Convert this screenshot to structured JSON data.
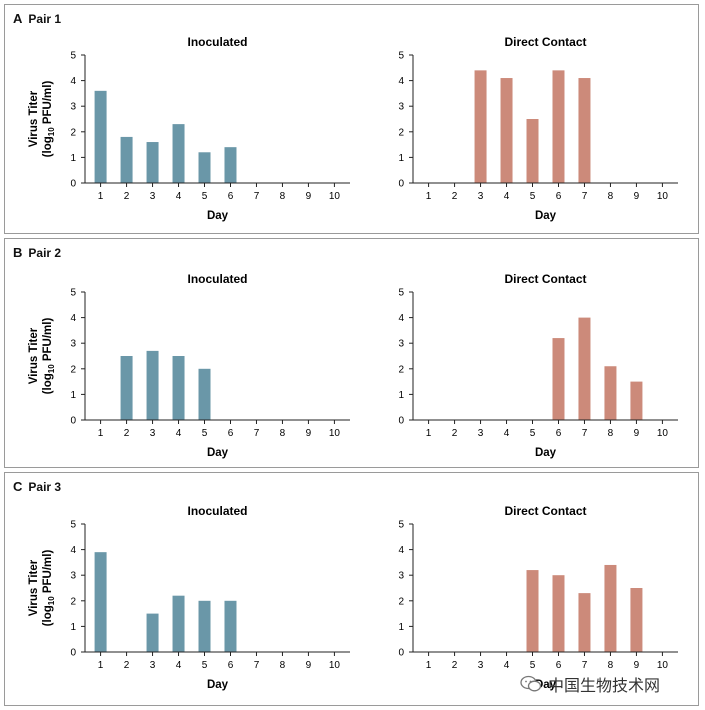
{
  "colors": {
    "inoculated": "#6a97a8",
    "direct_contact": "#cc8a7a",
    "axis": "#222222"
  },
  "watermark": {
    "text": "中国生物技术网",
    "icon": "wechat-chat-icon"
  },
  "chart_data": [
    {
      "type": "bar",
      "panel": "A",
      "panel_label": "Pair 1",
      "title": "Inoculated",
      "xlabel": "Day",
      "ylabel_main": "Virus Titer",
      "ylabel_unit_pre": "(log",
      "ylabel_unit_sub": "10",
      "ylabel_unit_post": " PFU/ml)",
      "categories": [
        "1",
        "2",
        "3",
        "4",
        "5",
        "6",
        "7",
        "8",
        "9",
        "10"
      ],
      "series": [
        {
          "values": [
            3.6,
            1.8,
            1.6,
            2.3,
            1.2,
            1.4,
            0,
            0,
            0,
            0
          ]
        }
      ],
      "ylim": [
        0,
        5
      ],
      "yticks": [
        "0",
        "1",
        "2",
        "3",
        "4",
        "5"
      ],
      "color_key": "inoculated",
      "grid": false
    },
    {
      "type": "bar",
      "panel": "A",
      "title": "Direct Contact",
      "xlabel": "Day",
      "categories": [
        "1",
        "2",
        "3",
        "4",
        "5",
        "6",
        "7",
        "8",
        "9",
        "10"
      ],
      "series": [
        {
          "values": [
            0,
            0,
            4.4,
            4.1,
            2.5,
            4.4,
            4.1,
            0,
            0,
            0
          ]
        }
      ],
      "ylim": [
        0,
        5
      ],
      "yticks": [
        "0",
        "1",
        "2",
        "3",
        "4",
        "5"
      ],
      "color_key": "direct_contact",
      "grid": false
    },
    {
      "type": "bar",
      "panel": "B",
      "panel_label": "Pair 2",
      "title": "Inoculated",
      "xlabel": "Day",
      "ylabel_main": "Virus Titer",
      "ylabel_unit_pre": "(log",
      "ylabel_unit_sub": "10",
      "ylabel_unit_post": " PFU/ml)",
      "categories": [
        "1",
        "2",
        "3",
        "4",
        "5",
        "6",
        "7",
        "8",
        "9",
        "10"
      ],
      "series": [
        {
          "values": [
            0,
            2.5,
            2.7,
            2.5,
            2.0,
            0,
            0,
            0,
            0,
            0
          ]
        }
      ],
      "ylim": [
        0,
        5
      ],
      "yticks": [
        "0",
        "1",
        "2",
        "3",
        "4",
        "5"
      ],
      "color_key": "inoculated",
      "grid": false
    },
    {
      "type": "bar",
      "panel": "B",
      "title": "Direct Contact",
      "xlabel": "Day",
      "categories": [
        "1",
        "2",
        "3",
        "4",
        "5",
        "6",
        "7",
        "8",
        "9",
        "10"
      ],
      "series": [
        {
          "values": [
            0,
            0,
            0,
            0,
            0,
            3.2,
            4.0,
            2.1,
            1.5,
            0
          ]
        }
      ],
      "ylim": [
        0,
        5
      ],
      "yticks": [
        "0",
        "1",
        "2",
        "3",
        "4",
        "5"
      ],
      "color_key": "direct_contact",
      "grid": false
    },
    {
      "type": "bar",
      "panel": "C",
      "panel_label": "Pair 3",
      "title": "Inoculated",
      "xlabel": "Day",
      "ylabel_main": "Virus Titer",
      "ylabel_unit_pre": "(log",
      "ylabel_unit_sub": "10",
      "ylabel_unit_post": " PFU/ml)",
      "categories": [
        "1",
        "2",
        "3",
        "4",
        "5",
        "6",
        "7",
        "8",
        "9",
        "10"
      ],
      "series": [
        {
          "values": [
            3.9,
            0,
            1.5,
            2.2,
            2.0,
            2.0,
            0,
            0,
            0,
            0
          ]
        }
      ],
      "ylim": [
        0,
        5
      ],
      "yticks": [
        "0",
        "1",
        "2",
        "3",
        "4",
        "5"
      ],
      "color_key": "inoculated",
      "grid": false
    },
    {
      "type": "bar",
      "panel": "C",
      "title": "Direct Contact",
      "xlabel": "Day",
      "categories": [
        "1",
        "2",
        "3",
        "4",
        "5",
        "6",
        "7",
        "8",
        "9",
        "10"
      ],
      "series": [
        {
          "values": [
            0,
            0,
            0,
            0,
            3.2,
            3.0,
            2.3,
            3.4,
            2.5,
            0
          ]
        }
      ],
      "ylim": [
        0,
        5
      ],
      "yticks": [
        "0",
        "1",
        "2",
        "3",
        "4",
        "5"
      ],
      "color_key": "direct_contact",
      "grid": false
    }
  ]
}
